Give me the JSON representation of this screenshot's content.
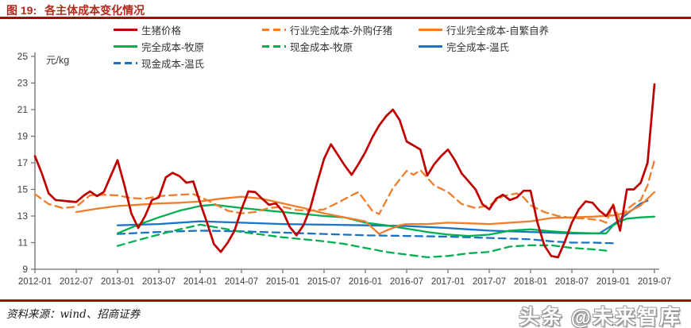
{
  "header": {
    "figure_label": "图 19:",
    "title": "各主体成本变化情况"
  },
  "footer": {
    "source": "资料来源：wind、招商证券",
    "watermark": "头条 @未来智库"
  },
  "colors": {
    "accent_rule": "#991407",
    "title": "#b5281a",
    "red": "#c00000",
    "orange": "#f07d2a",
    "green": "#00b050",
    "blue": "#1a73c4"
  },
  "chart_data": {
    "type": "line",
    "unit_label": "元/kg",
    "ylim": [
      9,
      25
    ],
    "y_ticks": [
      9,
      11,
      13,
      15,
      17,
      19,
      21,
      23,
      25
    ],
    "x_tick_months": [
      0,
      6,
      12,
      18,
      24,
      30,
      36,
      42,
      48,
      54,
      60,
      66,
      72,
      78,
      84,
      90
    ],
    "x_tick_labels": [
      "2012-01",
      "2012-07",
      "2013-01",
      "2013-07",
      "2014-01",
      "2014-07",
      "2015-01",
      "2015-07",
      "2016-01",
      "2016-07",
      "2017-01",
      "2017-07",
      "2018-01",
      "2018-07",
      "2019-01",
      "2019-07"
    ],
    "grid": false,
    "legend_position": "top",
    "series": [
      {
        "id": "pig-price",
        "name": "生猪价格",
        "color": "#c00000",
        "dash": false,
        "width": 2.7,
        "points": [
          [
            0,
            17.5
          ],
          [
            1,
            16.2
          ],
          [
            2,
            14.7
          ],
          [
            3,
            14.2
          ],
          [
            4,
            14.15
          ],
          [
            5,
            14.1
          ],
          [
            6,
            14.05
          ],
          [
            7,
            14.5
          ],
          [
            8,
            14.85
          ],
          [
            9,
            14.5
          ],
          [
            10,
            14.8
          ],
          [
            11,
            16.0
          ],
          [
            12,
            17.2
          ],
          [
            13,
            15.3
          ],
          [
            14,
            13.2
          ],
          [
            15,
            12.1
          ],
          [
            16,
            13.0
          ],
          [
            17,
            14.2
          ],
          [
            18,
            14.4
          ],
          [
            19,
            15.9
          ],
          [
            20,
            16.25
          ],
          [
            21,
            16.0
          ],
          [
            22,
            15.5
          ],
          [
            23,
            15.6
          ],
          [
            24,
            14.0
          ],
          [
            25,
            12.5
          ],
          [
            26,
            10.9
          ],
          [
            27,
            10.3
          ],
          [
            28,
            11.0
          ],
          [
            29,
            11.9
          ],
          [
            30,
            13.5
          ],
          [
            31,
            14.85
          ],
          [
            32,
            14.8
          ],
          [
            33,
            14.3
          ],
          [
            34,
            13.85
          ],
          [
            35,
            13.95
          ],
          [
            36,
            13.35
          ],
          [
            37,
            12.2
          ],
          [
            38,
            11.55
          ],
          [
            39,
            12.3
          ],
          [
            40,
            13.6
          ],
          [
            41,
            15.5
          ],
          [
            42,
            17.3
          ],
          [
            43,
            18.4
          ],
          [
            44,
            17.6
          ],
          [
            45,
            16.8
          ],
          [
            46,
            16.1
          ],
          [
            47,
            16.9
          ],
          [
            48,
            17.8
          ],
          [
            49,
            18.9
          ],
          [
            50,
            19.8
          ],
          [
            51,
            20.5
          ],
          [
            52,
            21.0
          ],
          [
            53,
            20.2
          ],
          [
            54,
            18.6
          ],
          [
            55,
            18.3
          ],
          [
            56,
            18.0
          ],
          [
            57,
            16.05
          ],
          [
            58,
            16.9
          ],
          [
            59,
            17.5
          ],
          [
            60,
            18.0
          ],
          [
            61,
            17.2
          ],
          [
            62,
            16.2
          ],
          [
            63,
            15.6
          ],
          [
            64,
            15.0
          ],
          [
            65,
            13.9
          ],
          [
            66,
            13.5
          ],
          [
            67,
            14.3
          ],
          [
            68,
            14.6
          ],
          [
            69,
            14.2
          ],
          [
            70,
            14.4
          ],
          [
            71,
            14.9
          ],
          [
            72,
            14.9
          ],
          [
            73,
            12.5
          ],
          [
            74,
            10.8
          ],
          [
            75,
            10.0
          ],
          [
            76,
            9.9
          ],
          [
            77,
            11.1
          ],
          [
            78,
            12.5
          ],
          [
            79,
            13.5
          ],
          [
            80,
            14.1
          ],
          [
            81,
            14.0
          ],
          [
            82,
            13.4
          ],
          [
            83,
            13.0
          ],
          [
            84,
            13.8
          ],
          [
            85,
            11.9
          ],
          [
            86,
            15.0
          ],
          [
            87,
            15.0
          ],
          [
            88,
            15.5
          ],
          [
            89,
            17.0
          ],
          [
            90,
            22.9
          ]
        ]
      },
      {
        "id": "industry-cost-purchased-piglets",
        "name": "行业完全成本-外购仔猪",
        "color": "#f07d2a",
        "dash": true,
        "width": 2.3,
        "points": [
          [
            0,
            14.65
          ],
          [
            2,
            13.9
          ],
          [
            4,
            13.6
          ],
          [
            6,
            13.7
          ],
          [
            8,
            14.55
          ],
          [
            10,
            14.6
          ],
          [
            12,
            14.55
          ],
          [
            14,
            14.35
          ],
          [
            16,
            14.3
          ],
          [
            18,
            14.5
          ],
          [
            21,
            14.6
          ],
          [
            23,
            14.65
          ],
          [
            25,
            14.2
          ],
          [
            28,
            13.4
          ],
          [
            30,
            13.2
          ],
          [
            32,
            13.3
          ],
          [
            34,
            13.6
          ],
          [
            36,
            13.7
          ],
          [
            38,
            13.45
          ],
          [
            40,
            13.4
          ],
          [
            42,
            13.5
          ],
          [
            44,
            14.0
          ],
          [
            46,
            14.55
          ],
          [
            47,
            14.8
          ],
          [
            49,
            13.4
          ],
          [
            50,
            13.15
          ],
          [
            52,
            15.1
          ],
          [
            54,
            16.4
          ],
          [
            55,
            16.1
          ],
          [
            56,
            16.45
          ],
          [
            58,
            15.3
          ],
          [
            60,
            14.8
          ],
          [
            62,
            13.9
          ],
          [
            64,
            13.6
          ],
          [
            66,
            13.8
          ],
          [
            68,
            14.5
          ],
          [
            70,
            14.7
          ],
          [
            71,
            14.4
          ],
          [
            72,
            13.8
          ],
          [
            74,
            13.3
          ],
          [
            76,
            13.0
          ],
          [
            78,
            12.85
          ],
          [
            80,
            12.8
          ],
          [
            82,
            12.7
          ],
          [
            83,
            12.5
          ],
          [
            84,
            13.9
          ],
          [
            85,
            12.7
          ],
          [
            86,
            13.5
          ],
          [
            87,
            13.9
          ],
          [
            88,
            14.2
          ],
          [
            89,
            15.3
          ],
          [
            90,
            17.2
          ]
        ]
      },
      {
        "id": "industry-cost-self-breeding",
        "name": "行业完全成本-自繁自养",
        "color": "#f07d2a",
        "dash": false,
        "width": 2.3,
        "points": [
          [
            6,
            13.3
          ],
          [
            9,
            13.55
          ],
          [
            12,
            13.75
          ],
          [
            15,
            13.85
          ],
          [
            18,
            13.95
          ],
          [
            21,
            14.0
          ],
          [
            24,
            14.1
          ],
          [
            27,
            14.3
          ],
          [
            30,
            14.45
          ],
          [
            33,
            14.3
          ],
          [
            36,
            13.95
          ],
          [
            39,
            13.6
          ],
          [
            42,
            13.2
          ],
          [
            45,
            12.9
          ],
          [
            48,
            12.6
          ],
          [
            50,
            11.65
          ],
          [
            51,
            11.9
          ],
          [
            53,
            12.3
          ],
          [
            54,
            12.4
          ],
          [
            57,
            12.4
          ],
          [
            60,
            12.5
          ],
          [
            63,
            12.45
          ],
          [
            66,
            12.4
          ],
          [
            69,
            12.5
          ],
          [
            72,
            12.6
          ],
          [
            75,
            12.85
          ],
          [
            78,
            12.9
          ],
          [
            81,
            12.95
          ],
          [
            84,
            13.05
          ],
          [
            86,
            13.25
          ],
          [
            88,
            13.8
          ],
          [
            89,
            14.3
          ],
          [
            90,
            14.8
          ]
        ]
      },
      {
        "id": "full-cost-muyuan",
        "name": "完全成本-牧原",
        "color": "#00b050",
        "dash": false,
        "width": 2.3,
        "points": [
          [
            12,
            11.7
          ],
          [
            15,
            12.35
          ],
          [
            18,
            12.9
          ],
          [
            21,
            13.4
          ],
          [
            24,
            13.75
          ],
          [
            26,
            13.85
          ],
          [
            30,
            13.6
          ],
          [
            33,
            13.45
          ],
          [
            36,
            13.3
          ],
          [
            39,
            13.15
          ],
          [
            42,
            13.0
          ],
          [
            45,
            12.9
          ],
          [
            48,
            12.5
          ],
          [
            51,
            12.3
          ],
          [
            54,
            12.05
          ],
          [
            57,
            11.8
          ],
          [
            60,
            11.6
          ],
          [
            63,
            11.5
          ],
          [
            66,
            11.6
          ],
          [
            69,
            11.9
          ],
          [
            72,
            12.0
          ],
          [
            75,
            11.85
          ],
          [
            78,
            11.75
          ],
          [
            81,
            11.7
          ],
          [
            83,
            11.7
          ],
          [
            84,
            12.3
          ],
          [
            85,
            12.6
          ],
          [
            86,
            12.8
          ],
          [
            88,
            12.9
          ],
          [
            90,
            12.95
          ]
        ]
      },
      {
        "id": "cash-cost-muyuan",
        "name": "现金成本-牧原",
        "color": "#00b050",
        "dash": true,
        "width": 2.3,
        "points": [
          [
            12,
            10.75
          ],
          [
            15,
            11.2
          ],
          [
            18,
            11.6
          ],
          [
            21,
            12.0
          ],
          [
            24,
            12.35
          ],
          [
            27,
            12.1
          ],
          [
            30,
            11.8
          ],
          [
            33,
            11.6
          ],
          [
            36,
            11.4
          ],
          [
            39,
            11.25
          ],
          [
            42,
            11.1
          ],
          [
            45,
            10.9
          ],
          [
            48,
            10.6
          ],
          [
            51,
            10.3
          ],
          [
            54,
            10.1
          ],
          [
            57,
            9.9
          ],
          [
            60,
            10.0
          ],
          [
            63,
            10.2
          ],
          [
            66,
            10.3
          ],
          [
            69,
            10.7
          ],
          [
            72,
            10.8
          ],
          [
            75,
            10.8
          ],
          [
            78,
            10.6
          ],
          [
            81,
            10.5
          ],
          [
            83,
            10.4
          ]
        ]
      },
      {
        "id": "full-cost-wens",
        "name": "完全成本-温氏",
        "color": "#1a73c4",
        "dash": false,
        "width": 2.3,
        "points": [
          [
            12,
            12.3
          ],
          [
            18,
            12.4
          ],
          [
            24,
            12.6
          ],
          [
            30,
            12.5
          ],
          [
            36,
            12.4
          ],
          [
            42,
            12.35
          ],
          [
            48,
            12.3
          ],
          [
            54,
            12.25
          ],
          [
            60,
            12.1
          ],
          [
            63,
            12.0
          ],
          [
            66,
            11.9
          ],
          [
            72,
            11.8
          ],
          [
            78,
            11.7
          ],
          [
            82,
            11.7
          ],
          [
            84,
            12.35
          ],
          [
            86,
            13.15
          ],
          [
            88,
            13.95
          ],
          [
            89,
            14.15
          ]
        ]
      },
      {
        "id": "cash-cost-wens",
        "name": "现金成本-温氏",
        "color": "#1a73c4",
        "dash": true,
        "width": 2.3,
        "points": [
          [
            12,
            11.65
          ],
          [
            18,
            11.8
          ],
          [
            24,
            11.9
          ],
          [
            30,
            11.85
          ],
          [
            36,
            11.75
          ],
          [
            42,
            11.65
          ],
          [
            48,
            11.55
          ],
          [
            54,
            11.5
          ],
          [
            60,
            11.45
          ],
          [
            66,
            11.35
          ],
          [
            72,
            11.25
          ],
          [
            75,
            11.1
          ],
          [
            78,
            11.0
          ],
          [
            81,
            11.0
          ],
          [
            84,
            10.95
          ]
        ]
      }
    ]
  }
}
